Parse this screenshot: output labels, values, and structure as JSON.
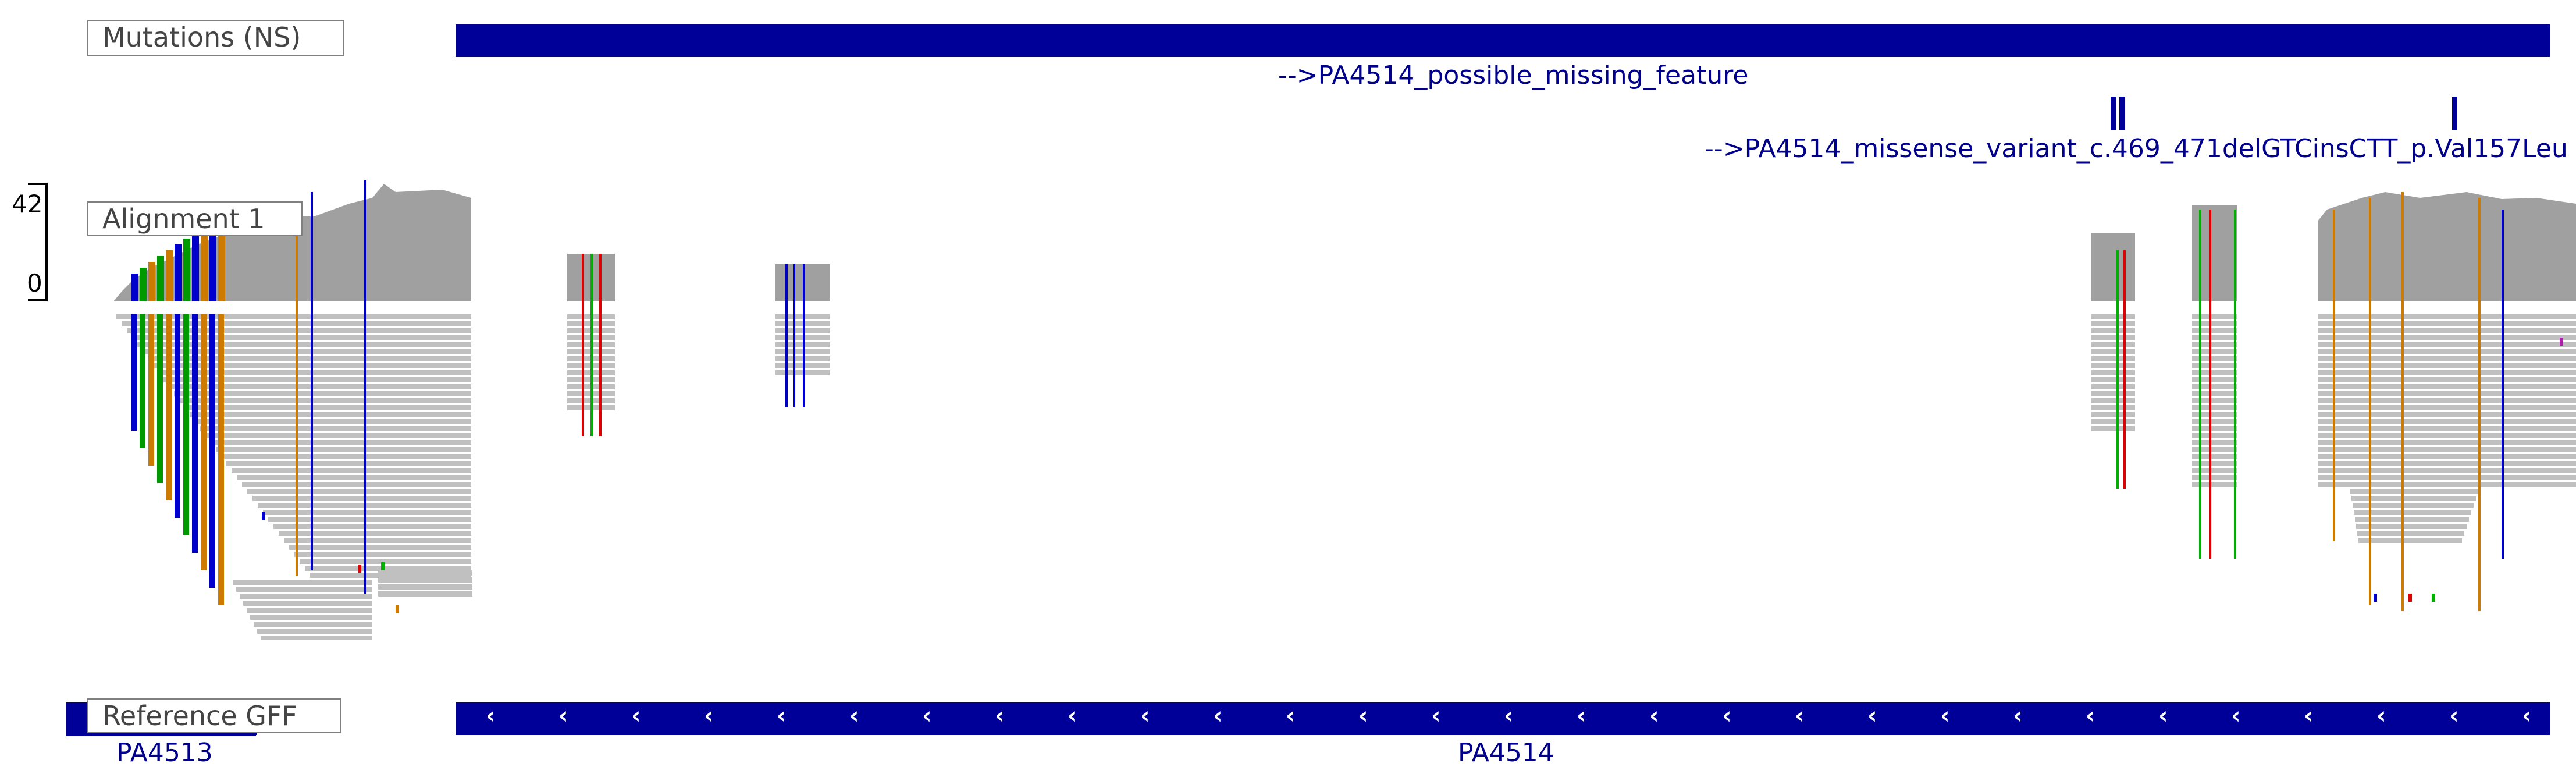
{
  "tracks": {
    "mutations": {
      "label": "Mutations (NS)",
      "features": [
        {
          "label": "-->PA4514_possible_missing_feature"
        },
        {
          "label": "-->PA4514_missense_variant_c.469_471delGTCinsCTT_p.Val157Leu"
        }
      ]
    },
    "alignment": {
      "label": "Alignment 1",
      "coverage_max": "42",
      "coverage_min": "0"
    },
    "reference": {
      "label": "Reference GFF",
      "genes": [
        {
          "label": "PA4513"
        },
        {
          "label": "PA4514"
        }
      ],
      "strand_glyph": "‹"
    }
  },
  "colors": {
    "feature": "#000099",
    "read": "#c0c0c0",
    "coverage": "#a0a0a0",
    "mismatch_A": "#00b000",
    "mismatch_C": "#0000cc",
    "mismatch_G": "#cc7a00",
    "mismatch_T": "#e00000"
  }
}
